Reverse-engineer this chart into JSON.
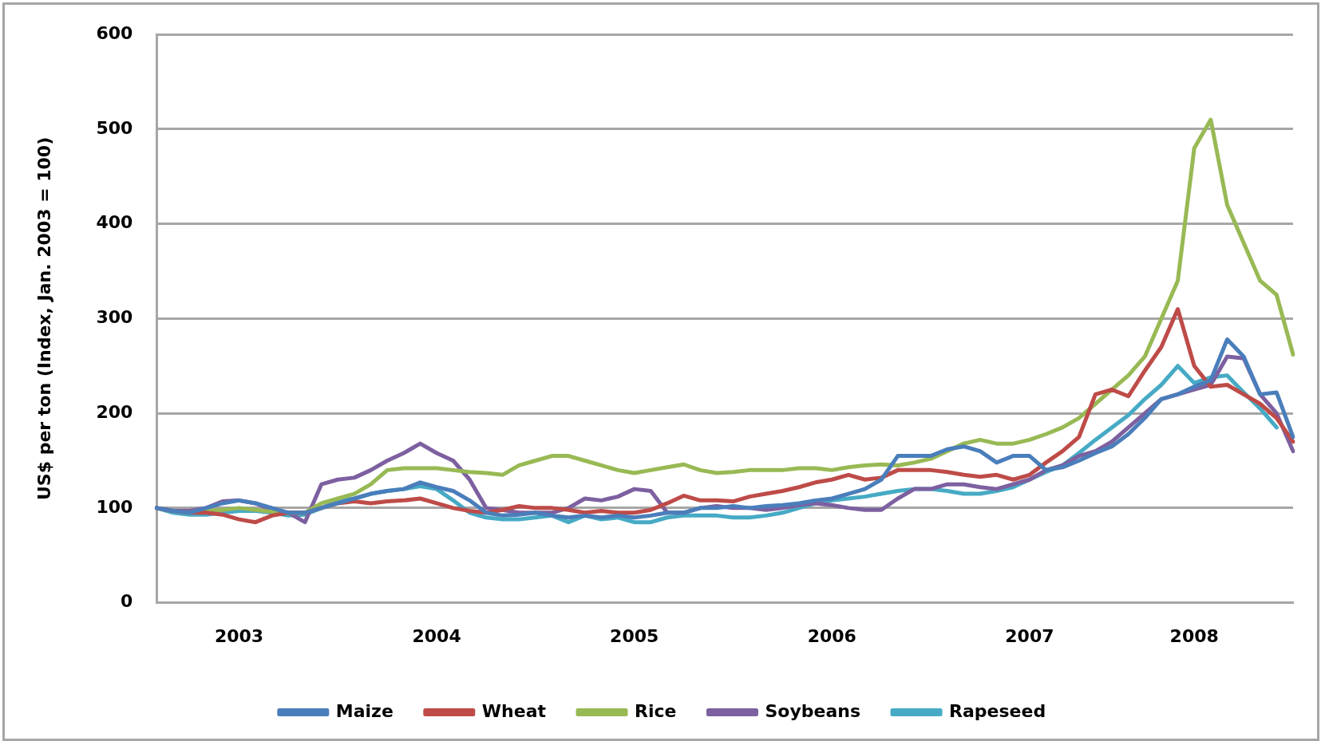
{
  "chart_data": {
    "type": "line",
    "ylabel": "US$ per ton (Index, Jan. 2003 = 100)",
    "categories": [
      null,
      null,
      null,
      null,
      null,
      "2003",
      null,
      null,
      null,
      null,
      null,
      null,
      null,
      null,
      null,
      null,
      null,
      "2004",
      null,
      null,
      null,
      null,
      null,
      null,
      null,
      null,
      null,
      null,
      null,
      "2005",
      null,
      null,
      null,
      null,
      null,
      null,
      null,
      null,
      null,
      null,
      null,
      "2006",
      null,
      null,
      null,
      null,
      null,
      null,
      null,
      null,
      null,
      null,
      null,
      "2007",
      null,
      null,
      null,
      null,
      null,
      null,
      null,
      null,
      null,
      "2008",
      null,
      null,
      null,
      null,
      null,
      null
    ],
    "series": [
      {
        "name": "Maize",
        "color": "#4a7ebb",
        "values": [
          100,
          97,
          95,
          100,
          105,
          108,
          105,
          100,
          95,
          95,
          100,
          105,
          110,
          115,
          118,
          120,
          127,
          122,
          118,
          108,
          95,
          92,
          93,
          95,
          92,
          90,
          92,
          90,
          92,
          90,
          92,
          95,
          95,
          100,
          100,
          102,
          100,
          102,
          103,
          105,
          108,
          110,
          115,
          120,
          130,
          155,
          155,
          155,
          162,
          165,
          160,
          148,
          155,
          155,
          140,
          143,
          150,
          158,
          165,
          178,
          195,
          215,
          220,
          228,
          235,
          278,
          260,
          220,
          222,
          175
        ]
      },
      {
        "name": "Wheat",
        "color": "#be4b48",
        "values": [
          100,
          97,
          95,
          95,
          93,
          88,
          85,
          92,
          95,
          95,
          100,
          105,
          107,
          105,
          107,
          108,
          110,
          105,
          100,
          97,
          95,
          98,
          102,
          100,
          100,
          98,
          95,
          97,
          95,
          95,
          98,
          105,
          113,
          108,
          108,
          107,
          112,
          115,
          118,
          122,
          127,
          130,
          135,
          130,
          132,
          140,
          140,
          140,
          138,
          135,
          133,
          135,
          130,
          135,
          148,
          160,
          175,
          220,
          225,
          218,
          245,
          270,
          310,
          250,
          228,
          230,
          220,
          210,
          195,
          170
        ]
      },
      {
        "name": "Rice",
        "color": "#98b954",
        "values": [
          null,
          null,
          95,
          97,
          98,
          100,
          98,
          96,
          95,
          95,
          105,
          110,
          115,
          125,
          140,
          142,
          142,
          142,
          140,
          138,
          137,
          135,
          145,
          150,
          155,
          155,
          150,
          145,
          140,
          137,
          140,
          143,
          146,
          140,
          137,
          138,
          140,
          140,
          140,
          142,
          142,
          140,
          143,
          145,
          146,
          145,
          148,
          152,
          160,
          168,
          172,
          168,
          168,
          172,
          178,
          185,
          195,
          210,
          225,
          240,
          260,
          300,
          340,
          480,
          510,
          420,
          380,
          340,
          325,
          262
        ]
      },
      {
        "name": "Soybeans",
        "color": "#7d60a0",
        "values": [
          100,
          97,
          97,
          100,
          107,
          108,
          105,
          98,
          95,
          85,
          125,
          130,
          132,
          140,
          150,
          158,
          168,
          158,
          150,
          130,
          100,
          98,
          95,
          95,
          95,
          100,
          110,
          108,
          112,
          120,
          118,
          95,
          95,
          100,
          102,
          100,
          100,
          98,
          100,
          103,
          105,
          103,
          100,
          98,
          98,
          110,
          120,
          120,
          125,
          125,
          122,
          120,
          125,
          130,
          140,
          145,
          155,
          160,
          170,
          185,
          200,
          215,
          220,
          225,
          230,
          260,
          258,
          220,
          200,
          160
        ]
      },
      {
        "name": "Rapeseed",
        "color": "#46aac5",
        "values": [
          100,
          95,
          93,
          93,
          95,
          97,
          97,
          95,
          92,
          93,
          100,
          107,
          110,
          115,
          118,
          120,
          123,
          120,
          108,
          95,
          90,
          88,
          88,
          90,
          92,
          85,
          92,
          88,
          90,
          85,
          85,
          90,
          92,
          92,
          92,
          90,
          90,
          92,
          95,
          100,
          105,
          108,
          110,
          112,
          115,
          118,
          120,
          120,
          118,
          115,
          115,
          118,
          122,
          130,
          138,
          145,
          158,
          172,
          185,
          198,
          215,
          230,
          250,
          232,
          238,
          240,
          222,
          205,
          185,
          null
        ]
      }
    ],
    "ylim": [
      0,
      600
    ],
    "yticks": [
      0,
      100,
      200,
      300,
      400,
      500,
      600
    ],
    "grid": "y",
    "legend": "bottom",
    "marker": "none",
    "line_style": "solid"
  }
}
